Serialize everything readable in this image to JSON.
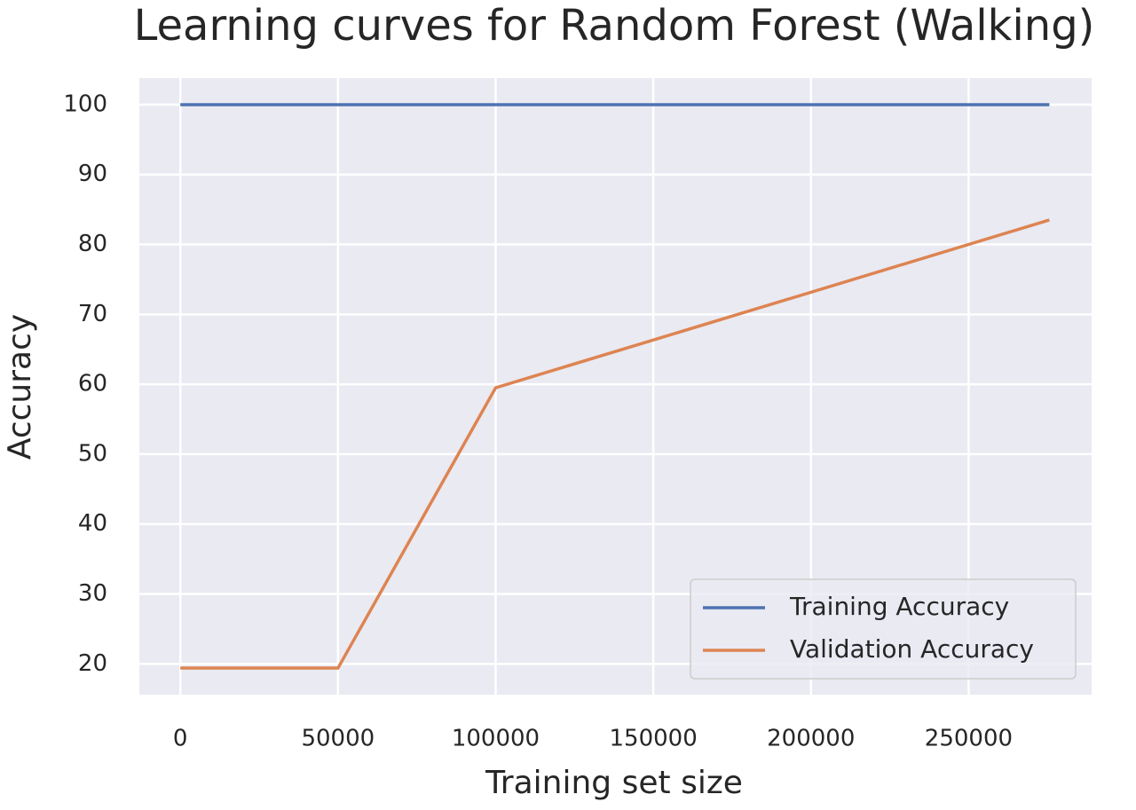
{
  "chart_data": {
    "type": "line",
    "title": "Learning curves for Random Forest (Walking)",
    "x_label": "Training set size",
    "y_label": "Accuracy",
    "x": [
      0,
      50000,
      100000,
      275600
    ],
    "series": [
      {
        "name": "Training Accuracy",
        "color": "#4c72b0",
        "values": [
          100,
          100,
          100,
          100
        ]
      },
      {
        "name": "Validation Accuracy",
        "color": "#dd8452",
        "values": [
          19.4,
          19.4,
          59.5,
          83.5
        ]
      }
    ],
    "xlim": [
      -13000,
      289000
    ],
    "ylim": [
      15.6,
      103.8
    ],
    "xticks": [
      0,
      50000,
      100000,
      150000,
      200000,
      250000
    ],
    "yticks": [
      20,
      30,
      40,
      50,
      60,
      70,
      80,
      90,
      100
    ],
    "grid": true,
    "legend": "lower right"
  }
}
